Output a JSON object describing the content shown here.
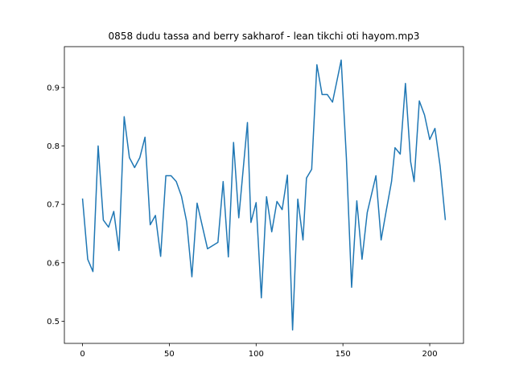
{
  "chart_data": {
    "type": "line",
    "title": "0858 dudu tassa and berry sakharof - lean tikchi oti hayom.mp3",
    "x": [
      0,
      3,
      6,
      9,
      12,
      15,
      18,
      21,
      24,
      27,
      30,
      33,
      36,
      39,
      42,
      45,
      48,
      51,
      54,
      57,
      60,
      63,
      66,
      72,
      78,
      81,
      84,
      87,
      90,
      95,
      97,
      100,
      103,
      106,
      109,
      112,
      115,
      118,
      121,
      124,
      127,
      129,
      132,
      135,
      138,
      141,
      144,
      147,
      149,
      152,
      155,
      158,
      161,
      164,
      169,
      172,
      175,
      178,
      180,
      183,
      186,
      189,
      191,
      194,
      197,
      200,
      203,
      206,
      209
    ],
    "series": [
      {
        "color": "#1f77b4",
        "values": [
          0.71,
          0.606,
          0.585,
          0.8,
          0.673,
          0.661,
          0.688,
          0.621,
          0.85,
          0.78,
          0.763,
          0.78,
          0.815,
          0.665,
          0.681,
          0.611,
          0.749,
          0.749,
          0.739,
          0.714,
          0.67,
          0.576,
          0.702,
          0.624,
          0.635,
          0.739,
          0.61,
          0.806,
          0.677,
          0.84,
          0.669,
          0.703,
          0.54,
          0.713,
          0.653,
          0.705,
          0.691,
          0.75,
          0.485,
          0.709,
          0.639,
          0.745,
          0.76,
          0.939,
          0.888,
          0.888,
          0.875,
          0.918,
          0.947,
          0.779,
          0.558,
          0.706,
          0.606,
          0.686,
          0.749,
          0.639,
          0.69,
          0.739,
          0.797,
          0.786,
          0.907,
          0.773,
          0.739,
          0.877,
          0.853,
          0.811,
          0.83,
          0.765,
          0.673
        ]
      }
    ],
    "xlim": [
      -10.45,
      219.45
    ],
    "xticks": [
      0,
      50,
      100,
      150,
      200
    ],
    "ylim": [
      0.462,
      0.97
    ],
    "yticks": [
      0.5,
      0.6,
      0.7,
      0.8,
      0.9
    ]
  }
}
